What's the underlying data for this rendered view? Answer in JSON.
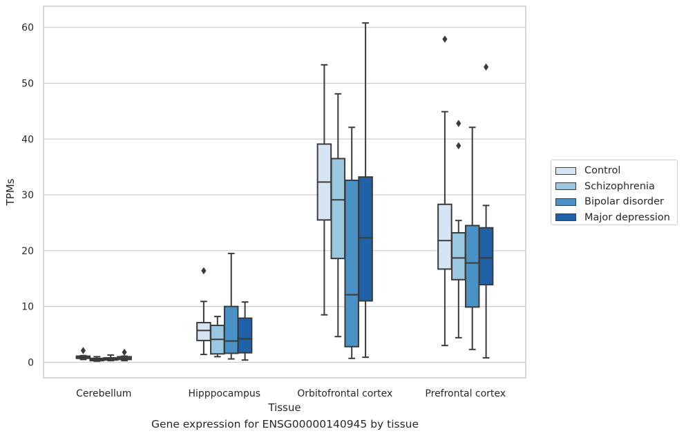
{
  "caption": "Gene expression for ENSG00000140945 by tissue",
  "colors": {
    "series": [
      "#d6e5f4",
      "#9ac8e0",
      "#4a91c6",
      "#2161a8"
    ],
    "edge": "#3a3a3a",
    "grid": "#cccccc",
    "frame": "#cccccc"
  },
  "chart_data": {
    "type": "box",
    "xlabel": "Tissue",
    "ylabel": "TPMs",
    "ylim": [
      -2.8,
      63.8
    ],
    "yticks": [
      0,
      10,
      20,
      30,
      40,
      50,
      60
    ],
    "grid": true,
    "legend_position": "right-outside",
    "categories": [
      "Cerebellum",
      "Hipppocampus",
      "Orbitofrontal cortex",
      "Prefrontal cortex"
    ],
    "series": [
      {
        "name": "Control",
        "boxes": [
          {
            "whislo": 0.5,
            "q1": 0.7,
            "med": 0.9,
            "q3": 1.1,
            "whishi": 1.2,
            "fliers": [
              2.1
            ]
          },
          {
            "whislo": 1.4,
            "q1": 3.9,
            "med": 5.7,
            "q3": 7.1,
            "whishi": 10.9,
            "fliers": [
              16.4
            ]
          },
          {
            "whislo": 8.5,
            "q1": 25.5,
            "med": 32.3,
            "q3": 39.1,
            "whishi": 53.3,
            "fliers": []
          },
          {
            "whislo": 3.0,
            "q1": 16.7,
            "med": 21.8,
            "q3": 28.3,
            "whishi": 44.9,
            "fliers": [
              57.9
            ]
          }
        ]
      },
      {
        "name": "Schizophrenia",
        "boxes": [
          {
            "whislo": 0.2,
            "q1": 0.3,
            "med": 0.5,
            "q3": 0.7,
            "whishi": 1.0,
            "fliers": []
          },
          {
            "whislo": 1.0,
            "q1": 1.5,
            "med": 4.1,
            "q3": 6.6,
            "whishi": 8.2,
            "fliers": []
          },
          {
            "whislo": 4.6,
            "q1": 18.6,
            "med": 29.1,
            "q3": 36.5,
            "whishi": 48.1,
            "fliers": []
          },
          {
            "whislo": 4.4,
            "q1": 14.8,
            "med": 18.7,
            "q3": 23.2,
            "whishi": 25.4,
            "fliers": [
              38.8,
              42.8
            ]
          }
        ]
      },
      {
        "name": "Bipolar disorder",
        "boxes": [
          {
            "whislo": 0.3,
            "q1": 0.4,
            "med": 0.6,
            "q3": 0.8,
            "whishi": 1.3,
            "fliers": []
          },
          {
            "whislo": 0.6,
            "q1": 1.6,
            "med": 3.8,
            "q3": 10.0,
            "whishi": 19.5,
            "fliers": []
          },
          {
            "whislo": 0.7,
            "q1": 2.8,
            "med": 12.1,
            "q3": 32.6,
            "whishi": 42.1,
            "fliers": []
          },
          {
            "whislo": 2.3,
            "q1": 9.9,
            "med": 17.8,
            "q3": 24.5,
            "whishi": 42.1,
            "fliers": []
          }
        ]
      },
      {
        "name": "Major depression",
        "boxes": [
          {
            "whislo": 0.3,
            "q1": 0.5,
            "med": 0.7,
            "q3": 1.0,
            "whishi": 1.1,
            "fliers": [
              1.8
            ]
          },
          {
            "whislo": 0.4,
            "q1": 1.7,
            "med": 4.2,
            "q3": 7.9,
            "whishi": 10.8,
            "fliers": []
          },
          {
            "whislo": 0.9,
            "q1": 11.0,
            "med": 22.3,
            "q3": 33.2,
            "whishi": 60.8,
            "fliers": []
          },
          {
            "whislo": 0.8,
            "q1": 13.9,
            "med": 18.7,
            "q3": 24.1,
            "whishi": 28.1,
            "fliers": [
              52.9
            ]
          }
        ]
      }
    ]
  }
}
